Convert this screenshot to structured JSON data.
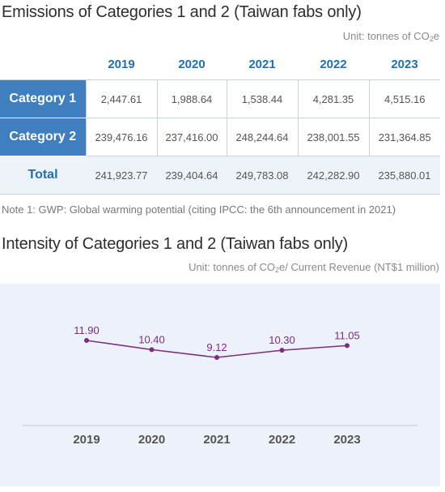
{
  "emissions": {
    "title": "Emissions of Categories 1 and 2 (Taiwan fabs only)",
    "unit_prefix": "Unit: tonnes of CO",
    "unit_sub": "2",
    "unit_suffix": "e",
    "years": [
      "2019",
      "2020",
      "2021",
      "2022",
      "2023"
    ],
    "rows": [
      {
        "label": "Category 1",
        "values": [
          "2,447.61",
          "1,988.64",
          "1,538.44",
          "4,281.35",
          "4,515.16"
        ]
      },
      {
        "label": "Category 2",
        "values": [
          "239,476.16",
          "237,416.00",
          "248,244.64",
          "238,001.55",
          "231,364.85"
        ]
      },
      {
        "label": "Total",
        "values": [
          "241,923.77",
          "239,404.64",
          "249,783.08",
          "242,282.90",
          "235,880.01"
        ]
      }
    ],
    "note": "Note 1: GWP: Global warming potential (citing IPCC: the 6th announcement in 2021)"
  },
  "intensity": {
    "title": "Intensity of Categories 1 and 2 (Taiwan fabs only)",
    "unit_prefix": "Unit: tonnes of CO",
    "unit_sub": "2",
    "unit_suffix": "e/ Current Revenue (NT$1 million)"
  },
  "chart_data": {
    "type": "line",
    "categories": [
      "2019",
      "2020",
      "2021",
      "2022",
      "2023"
    ],
    "values": [
      11.9,
      10.4,
      9.12,
      10.3,
      11.05
    ],
    "labels": [
      "11.90",
      "10.40",
      "9.12",
      "10.30",
      "11.05"
    ],
    "line_color": "#7a2d82",
    "background_color": "#edf1f9",
    "grid": false
  }
}
